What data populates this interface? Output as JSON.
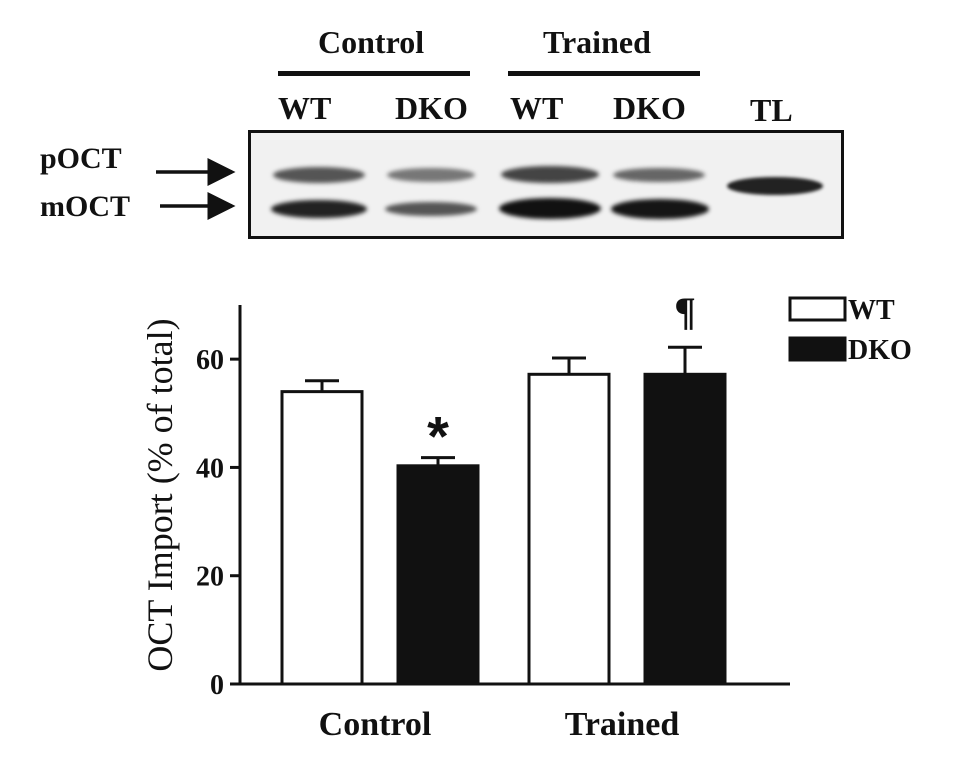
{
  "blot": {
    "groups": [
      {
        "label": "Control"
      },
      {
        "label": "Trained"
      }
    ],
    "lanes": [
      "WT",
      "DKO",
      "WT",
      "DKO",
      "TL"
    ],
    "rows": [
      "pOCT",
      "mOCT"
    ]
  },
  "chart_data": {
    "type": "bar",
    "title": "",
    "xlabel": "",
    "ylabel": "OCT Import (% of total)",
    "categories": [
      "Control",
      "Trained"
    ],
    "ylim": [
      0,
      70
    ],
    "yticks": [
      0,
      20,
      40,
      60
    ],
    "series": [
      {
        "name": "WT",
        "color": "#ffffff",
        "values": [
          54,
          57.2
        ],
        "errors": [
          2,
          3
        ]
      },
      {
        "name": "DKO",
        "color": "#111111",
        "values": [
          40.3,
          57.2
        ],
        "errors": [
          1.5,
          5
        ]
      }
    ],
    "annotations": [
      {
        "series": "DKO",
        "category": "Control",
        "text": "*"
      },
      {
        "series": "DKO",
        "category": "Trained",
        "text": "¶"
      }
    ],
    "legend": {
      "position": "top-right",
      "entries": [
        "WT",
        "DKO"
      ]
    }
  }
}
